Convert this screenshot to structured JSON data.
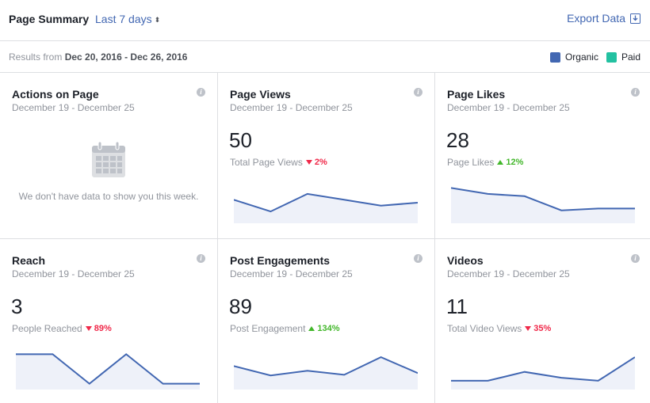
{
  "header": {
    "title": "Page Summary",
    "range_label": "Last 7 days",
    "export_label": "Export Data"
  },
  "subheader": {
    "results_prefix": "Results from",
    "results_range": "Dec 20, 2016 - Dec 26, 2016",
    "legend": [
      {
        "label": "Organic",
        "color": "#4267b2"
      },
      {
        "label": "Paid",
        "color": "#23c1a1"
      }
    ]
  },
  "cards": [
    {
      "title": "Actions on Page",
      "date": "December 19 - December 25",
      "empty_message": "We don't have data to show you this week."
    },
    {
      "title": "Page Views",
      "date": "December 19 - December 25",
      "value": "50",
      "metric_label": "Total Page Views",
      "change": "2%",
      "direction": "down",
      "spark": [
        6,
        4,
        7,
        6,
        5,
        5.5
      ]
    },
    {
      "title": "Page Likes",
      "date": "December 19 - December 25",
      "value": "28",
      "metric_label": "Page Likes",
      "change": "12%",
      "direction": "up",
      "spark": [
        8,
        7,
        6.6,
        4.2,
        4.5,
        4.5
      ]
    },
    {
      "title": "Reach",
      "date": "December 19 - December 25",
      "value": "3",
      "metric_label": "People Reached",
      "change": "89%",
      "direction": "down",
      "spark": [
        8,
        8,
        3,
        8,
        3,
        3
      ]
    },
    {
      "title": "Post Engagements",
      "date": "December 19 - December 25",
      "value": "89",
      "metric_label": "Post Engagement",
      "change": "134%",
      "direction": "up",
      "spark": [
        6,
        4.4,
        5.2,
        4.5,
        7.5,
        4.8
      ]
    },
    {
      "title": "Videos",
      "date": "December 19 - December 25",
      "value": "11",
      "metric_label": "Total Video Views",
      "change": "35%",
      "direction": "down",
      "spark": [
        3.5,
        3.5,
        5,
        4,
        3.5,
        7.5
      ]
    }
  ]
}
